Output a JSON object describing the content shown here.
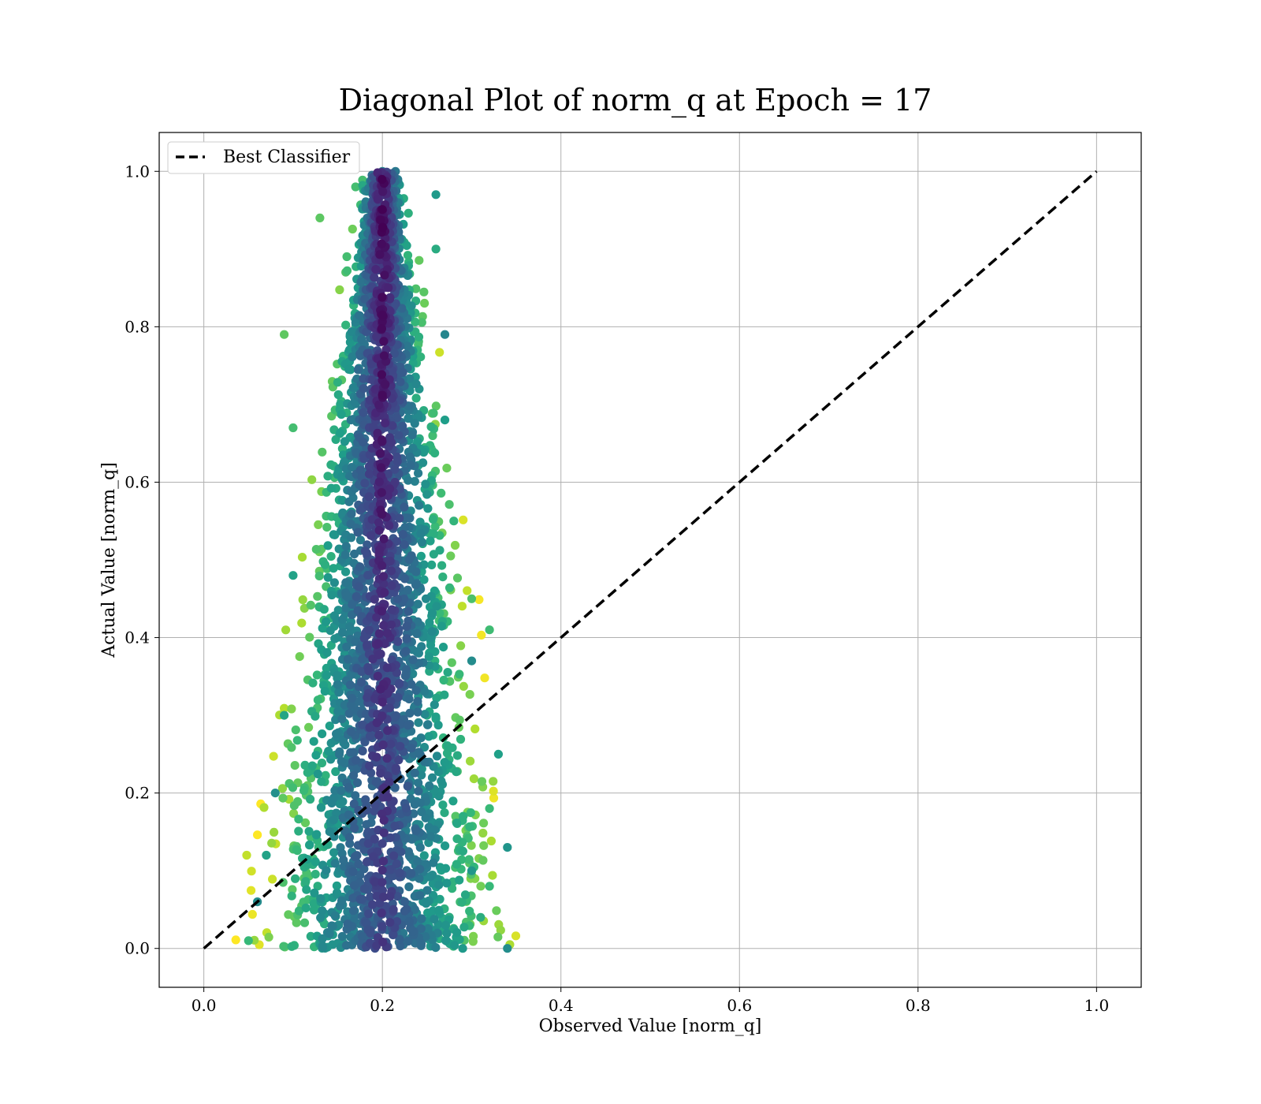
{
  "chart_data": {
    "type": "scatter",
    "title": "Diagonal Plot of norm_q at Epoch = 17",
    "xlabel": "Observed Value [norm_q]",
    "ylabel": "Actual Value [norm_q]",
    "xlim": [
      -0.05,
      1.05
    ],
    "ylim": [
      -0.05,
      1.05
    ],
    "xticks": [
      "0.0",
      "0.2",
      "0.4",
      "0.6",
      "0.8",
      "1.0"
    ],
    "yticks": [
      "0.0",
      "0.2",
      "0.4",
      "0.6",
      "0.8",
      "1.0"
    ],
    "grid": true,
    "legend": {
      "position": "top-left",
      "entries": [
        "Best Classifier"
      ]
    },
    "series": [
      {
        "name": "Best Classifier",
        "kind": "line",
        "style": "dashed",
        "color": "#000000",
        "x": [
          0.0,
          1.0
        ],
        "y": [
          0.0,
          1.0
        ]
      },
      {
        "kind": "scatter",
        "colormap": "viridis",
        "description_of_distribution": {
          "x_center": 0.2,
          "x_range_at_bottom": [
            0.05,
            0.34
          ],
          "x_range_at_top": [
            0.17,
            0.22
          ],
          "y_range": [
            0.0,
            1.0
          ]
        },
        "points_sample": [
          [
            0.05,
            0.01
          ],
          [
            0.06,
            0.06
          ],
          [
            0.07,
            0.12
          ],
          [
            0.08,
            0.2
          ],
          [
            0.09,
            0.3
          ],
          [
            0.1,
            0.48
          ],
          [
            0.1,
            0.67
          ],
          [
            0.09,
            0.79
          ],
          [
            0.13,
            0.94
          ],
          [
            0.17,
            0.98
          ],
          [
            0.2,
            1.0
          ],
          [
            0.22,
            0.96
          ],
          [
            0.26,
            0.97
          ],
          [
            0.26,
            0.9
          ],
          [
            0.27,
            0.79
          ],
          [
            0.27,
            0.68
          ],
          [
            0.28,
            0.55
          ],
          [
            0.3,
            0.45
          ],
          [
            0.32,
            0.41
          ],
          [
            0.3,
            0.37
          ],
          [
            0.33,
            0.25
          ],
          [
            0.32,
            0.18
          ],
          [
            0.34,
            0.13
          ],
          [
            0.32,
            0.08
          ],
          [
            0.34,
            0.0
          ],
          [
            0.29,
            0.0
          ],
          [
            0.31,
            0.04
          ],
          [
            0.3,
            0.1
          ],
          [
            0.2,
            0.5
          ],
          [
            0.2,
            0.2
          ],
          [
            0.15,
            0.3
          ],
          [
            0.25,
            0.3
          ],
          [
            0.2,
            0.8
          ],
          [
            0.18,
            0.6
          ],
          [
            0.22,
            0.7
          ]
        ]
      }
    ]
  }
}
